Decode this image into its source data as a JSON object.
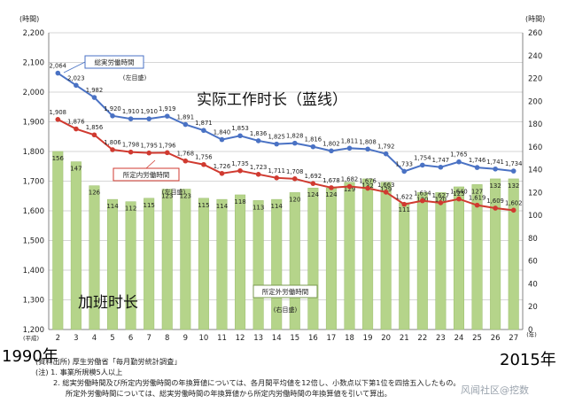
{
  "chart_data": {
    "type": "bar+line",
    "title": "",
    "left_axis": {
      "unit_label": "(時間)",
      "range": [
        1200,
        2200
      ],
      "ticks": [
        "1,200",
        "1,300",
        "1,400",
        "1,500",
        "1,600",
        "1,700",
        "1,800",
        "1,900",
        "2,000",
        "2,100",
        "2,200"
      ]
    },
    "right_axis": {
      "unit_label": "(時間)",
      "range": [
        0,
        260
      ],
      "ticks": [
        "0",
        "20",
        "40",
        "60",
        "80",
        "100",
        "120",
        "140",
        "160",
        "180",
        "200",
        "220",
        "240",
        "260"
      ]
    },
    "x_prefix": "(平成)",
    "x_suffix": "(年)",
    "categories": [
      "2",
      "3",
      "4",
      "5",
      "6",
      "7",
      "8",
      "9",
      "10",
      "11",
      "12",
      "13",
      "14",
      "15",
      "16",
      "17",
      "18",
      "19",
      "20",
      "21",
      "22",
      "23",
      "24",
      "25",
      "26",
      "27"
    ],
    "series": [
      {
        "name": "総実労働時間",
        "axis_note": "(左目盛)",
        "type": "line",
        "color": "#4a72c4",
        "values": [
          2064,
          2023,
          1982,
          1920,
          1910,
          1910,
          1919,
          1891,
          1871,
          1840,
          1853,
          1836,
          1825,
          1828,
          1816,
          1802,
          1811,
          1808,
          1792,
          1733,
          1754,
          1747,
          1765,
          1746,
          1741,
          1734
        ],
        "labels": [
          "2,064",
          "2,023",
          "1,982",
          "1,920",
          "1,910",
          "1,910",
          "1,919",
          "1,891",
          "1,871",
          "1,840",
          "1,853",
          "1,836",
          "1,825",
          "1,828",
          "1,816",
          "1,802",
          "1,811",
          "1,808",
          "1,792",
          "1,733",
          "1,754",
          "1,747",
          "1,765",
          "1,746",
          "1,741",
          "1,734"
        ]
      },
      {
        "name": "所定内労働時間",
        "axis_note": "(左目盛)",
        "type": "line",
        "color": "#d03a30",
        "values": [
          1908,
          1876,
          1856,
          1806,
          1798,
          1795,
          1796,
          1768,
          1756,
          1726,
          1735,
          1723,
          1711,
          1708,
          1692,
          1678,
          1682,
          1676,
          1663,
          1622,
          1634,
          1627,
          1640,
          1619,
          1609,
          1602
        ],
        "labels": [
          "1,908",
          "1,876",
          "1,856",
          "1,806",
          "1,798",
          "1,795",
          "1,796",
          "1,768",
          "1,756",
          "1,726",
          "1,735",
          "1,723",
          "1,711",
          "1,708",
          "1,692",
          "1,678",
          "1,682",
          "1,676",
          "1,663",
          "1,622",
          "1,634",
          "1,627",
          "1,640",
          "1,619",
          "1,609",
          "1,602"
        ]
      },
      {
        "name": "所定外労働時間",
        "axis_note": "(右目盛)",
        "type": "bar",
        "color": "#b5d48a",
        "values": [
          156,
          147,
          126,
          114,
          112,
          115,
          123,
          123,
          115,
          114,
          118,
          113,
          114,
          120,
          124,
          124,
          129,
          132,
          129,
          111,
          120,
          120,
          125,
          127,
          132,
          132
        ]
      }
    ]
  },
  "annotations": {
    "blue_line": "实际工作时长（蓝线）",
    "bars": "加班时长",
    "start_year": "1990年",
    "end_year": "2015年"
  },
  "notes": {
    "source": "(資料出所) 厚生労働省「毎月勤労統計調査」",
    "note1": "(注) 1. 事業所規模5人以上",
    "note2": "2. 総実労働時間及び所定内労働時間の年換算値については、各月間平均値を12倍し、小数点以下第1位を四捨五入したもの。",
    "note3": "所定外労働時間については、総実労働時間の年換算値から所定内労働時間の年換算値を引いて算出。"
  },
  "watermark": "风闻社区@挖数",
  "colors": {
    "blue": "#4a72c4",
    "red": "#d03a30",
    "bar": "#b5d48a",
    "grid": "#c8c8c8"
  }
}
